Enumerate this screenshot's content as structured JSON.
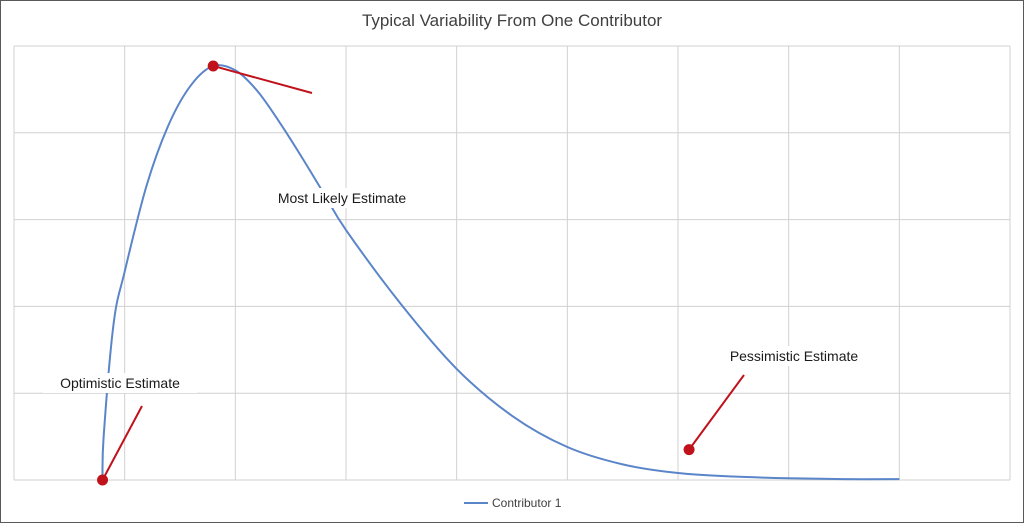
{
  "chart_data": {
    "type": "line",
    "title": "Typical Variability From One Contributor",
    "xlabel": "",
    "ylabel": "",
    "grid": true,
    "axis_tick_labels": false,
    "legend_position": "bottom",
    "xlim": [
      0,
      9
    ],
    "ylim": [
      0,
      5
    ],
    "series": [
      {
        "name": "Contributor 1",
        "color": "#5b85c9",
        "x": [
          0.8,
          0.81,
          0.9,
          1.0,
          1.2,
          1.4,
          1.6,
          1.8,
          2.0,
          2.2,
          2.4,
          2.6,
          2.8,
          3.0,
          3.5,
          4.0,
          4.5,
          5.0,
          5.5,
          6.0,
          6.5,
          7.0,
          7.5,
          8.0
        ],
        "y": [
          0.0,
          0.5,
          1.8,
          2.4,
          3.4,
          4.1,
          4.55,
          4.77,
          4.72,
          4.48,
          4.12,
          3.72,
          3.3,
          2.88,
          2.02,
          1.28,
          0.74,
          0.38,
          0.18,
          0.08,
          0.04,
          0.02,
          0.01,
          0.01
        ]
      }
    ],
    "annotations": [
      {
        "label": "Optimistic Estimate",
        "x": 0.8,
        "y": 0.0
      },
      {
        "label": "Most Likely Estimate",
        "x": 1.8,
        "y": 4.77
      },
      {
        "label": "Pessimistic Estimate",
        "x": 6.1,
        "y": 0.35
      }
    ],
    "marker_color": "#c0121b",
    "grid_color": "#d0d0d0"
  }
}
